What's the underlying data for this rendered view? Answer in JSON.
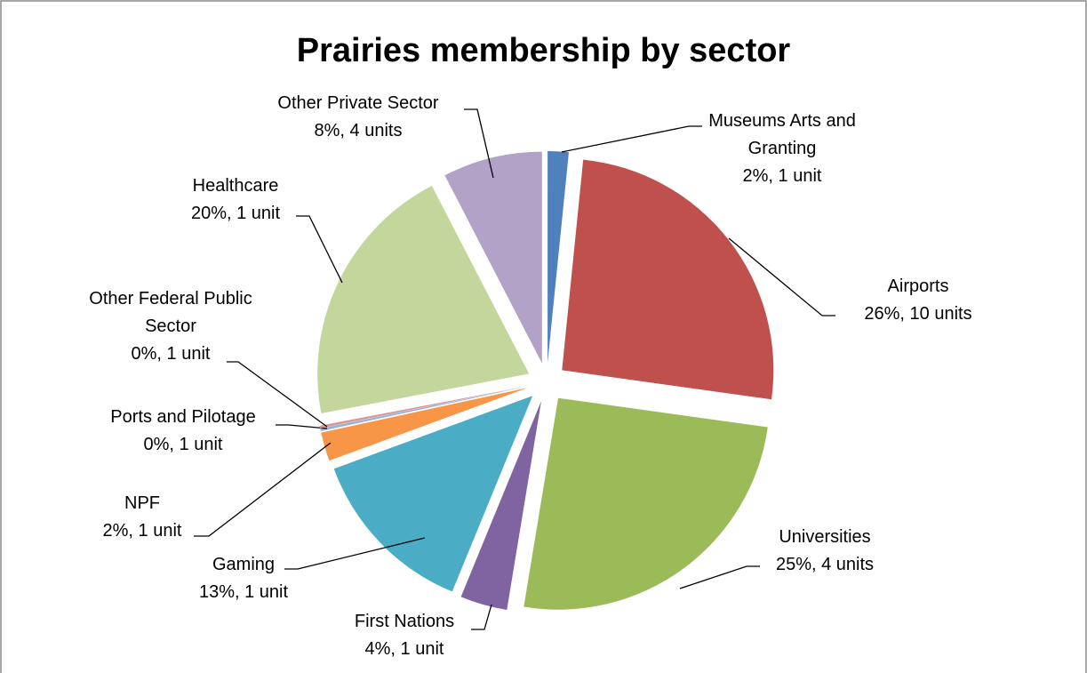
{
  "chart_data": {
    "type": "pie",
    "title": "Prairies membership by sector",
    "categories": [
      "Museums Arts and Granting",
      "Airports",
      "Universities",
      "First Nations",
      "Gaming",
      "NPF",
      "Ports and Pilotage",
      "Other Federal Public Sector",
      "Healthcare",
      "Other Private Sector"
    ],
    "values": [
      1.6,
      25.6,
      25.4,
      3.6,
      13.2,
      2.2,
      0.2,
      0.2,
      20.4,
      7.6
    ],
    "value_labels": [
      "2%, 1 unit",
      "26%, 10 units",
      "25%, 4 units",
      "4%, 1 unit",
      "13%, 1 unit",
      "2%, 1 unit",
      "0%, 1 unit",
      "0%, 1 unit",
      "20%, 1 unit",
      "8%, 4 units"
    ],
    "colors": [
      "#4f81bd",
      "#c0504d",
      "#9bbb59",
      "#8064a2",
      "#4bacc6",
      "#f79646",
      "#95b3d7",
      "#d99694",
      "#c3d69b",
      "#b3a2c7"
    ]
  }
}
